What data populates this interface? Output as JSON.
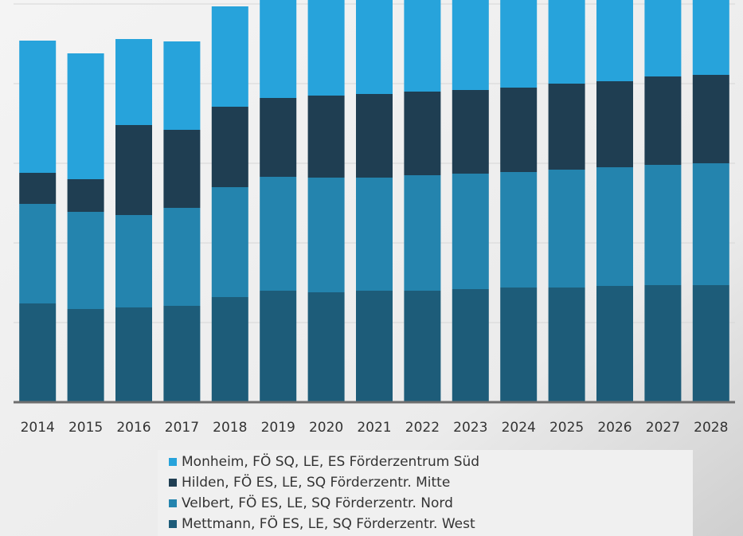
{
  "chart_data": {
    "type": "stacked-bar",
    "categories": [
      "2014",
      "2015",
      "2016",
      "2017",
      "2018",
      "2019",
      "2020",
      "2021",
      "2022",
      "2023",
      "2024",
      "2025",
      "2026",
      "2027",
      "2028"
    ],
    "series": [
      {
        "name": "Monheim, FÖ SQ, LE, ES Förderzentrum Süd",
        "color": "#27a3db",
        "values": [
          166,
          158,
          108,
          111,
          126,
          135,
          136,
          135,
          136,
          137,
          141,
          139,
          139,
          138,
          139
        ]
      },
      {
        "name": "Hilden, FÖ ES, LE, SQ Förderzentr. Mitte",
        "color": "#1f3e52",
        "values": [
          39,
          41,
          113,
          98,
          101,
          99,
          103,
          105,
          105,
          105,
          106,
          108,
          108,
          111,
          111
        ]
      },
      {
        "name": "Velbert, FÖ ES, LE, SQ Förderzentr. Nord",
        "color": "#2484ae",
        "values": [
          125,
          122,
          116,
          123,
          138,
          143,
          144,
          142,
          145,
          145,
          145,
          148,
          149,
          151,
          153
        ]
      },
      {
        "name": "Mettmann, FÖ ES, LE, SQ Förderzentr. West",
        "color": "#1d5c79",
        "values": [
          124,
          117,
          119,
          121,
          132,
          140,
          138,
          140,
          140,
          142,
          144,
          144,
          146,
          147,
          147
        ]
      }
    ],
    "ylim": [
      0,
      532
    ],
    "yticks": [
      0,
      100,
      200,
      300,
      400,
      500
    ],
    "grid": true
  }
}
